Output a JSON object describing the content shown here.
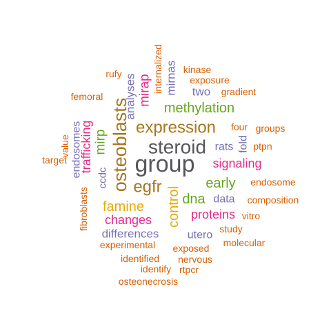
{
  "palette": {
    "orange": "#d95f02",
    "teal_gray": "#56565a",
    "purple": "#7570b3",
    "magenta": "#e7298a",
    "green": "#66a61e",
    "gold": "#e6ab02",
    "brown": "#a6761d",
    "gray": "#666666"
  },
  "words": [
    {
      "id": "group",
      "text": "group",
      "color": "#56565a"
    },
    {
      "id": "steroid",
      "text": "steroid",
      "color": "#56565a"
    },
    {
      "id": "expression",
      "text": "expression",
      "color": "#a6761d"
    },
    {
      "id": "osteoblasts",
      "text": "osteoblasts",
      "color": "#a6761d"
    },
    {
      "id": "egfr",
      "text": "egfr",
      "color": "#a6761d"
    },
    {
      "id": "methylation",
      "text": "methylation",
      "color": "#66a61e"
    },
    {
      "id": "famine",
      "text": "famine",
      "color": "#e6ab02"
    },
    {
      "id": "control",
      "text": "control",
      "color": "#e6ab02"
    },
    {
      "id": "signaling",
      "text": "signaling",
      "color": "#e7298a"
    },
    {
      "id": "early",
      "text": "early",
      "color": "#66a61e"
    },
    {
      "id": "dna",
      "text": "dna",
      "color": "#66a61e"
    },
    {
      "id": "changes",
      "text": "changes",
      "color": "#e7298a"
    },
    {
      "id": "proteins",
      "text": "proteins",
      "color": "#e7298a"
    },
    {
      "id": "mirp",
      "text": "mirp",
      "color": "#66a61e"
    },
    {
      "id": "trafficking",
      "text": "trafficking",
      "color": "#e7298a"
    },
    {
      "id": "differences",
      "text": "differences",
      "color": "#7570b3"
    },
    {
      "id": "mirap",
      "text": "mirap",
      "color": "#e7298a"
    },
    {
      "id": "analyses",
      "text": "analyses",
      "color": "#7570b3"
    },
    {
      "id": "mirnas",
      "text": "mirnas",
      "color": "#7570b3"
    },
    {
      "id": "internalized",
      "text": "internalized",
      "color": "#d95f02"
    },
    {
      "id": "rufy",
      "text": "rufy",
      "color": "#d95f02"
    },
    {
      "id": "kinase",
      "text": "kinase",
      "color": "#d95f02"
    },
    {
      "id": "exposure",
      "text": "exposure",
      "color": "#d95f02"
    },
    {
      "id": "two",
      "text": "two",
      "color": "#7570b3"
    },
    {
      "id": "gradient",
      "text": "gradient",
      "color": "#d95f02"
    },
    {
      "id": "femoral",
      "text": "femoral",
      "color": "#d95f02"
    },
    {
      "id": "four",
      "text": "four",
      "color": "#d95f02"
    },
    {
      "id": "groups",
      "text": "groups",
      "color": "#d95f02"
    },
    {
      "id": "rats",
      "text": "rats",
      "color": "#7570b3"
    },
    {
      "id": "fold",
      "text": "fold",
      "color": "#7570b3"
    },
    {
      "id": "ptpn",
      "text": "ptpn",
      "color": "#d95f02"
    },
    {
      "id": "endosomes",
      "text": "endosomes",
      "color": "#7570b3"
    },
    {
      "id": "value",
      "text": "value",
      "color": "#d95f02"
    },
    {
      "id": "target",
      "text": "target",
      "color": "#d95f02"
    },
    {
      "id": "ccdc",
      "text": "ccdc",
      "color": "#7570b3"
    },
    {
      "id": "endosome",
      "text": "endosome",
      "color": "#d95f02"
    },
    {
      "id": "fibroblasts",
      "text": "fibroblasts",
      "color": "#d95f02"
    },
    {
      "id": "data",
      "text": "data",
      "color": "#7570b3"
    },
    {
      "id": "composition",
      "text": "composition",
      "color": "#d95f02"
    },
    {
      "id": "vitro",
      "text": "vitro",
      "color": "#d95f02"
    },
    {
      "id": "utero",
      "text": "utero",
      "color": "#7570b3"
    },
    {
      "id": "study",
      "text": "study",
      "color": "#d95f02"
    },
    {
      "id": "experimental",
      "text": "experimental",
      "color": "#d95f02"
    },
    {
      "id": "exposed",
      "text": "exposed",
      "color": "#d95f02"
    },
    {
      "id": "molecular",
      "text": "molecular",
      "color": "#d95f02"
    },
    {
      "id": "identified",
      "text": "identified",
      "color": "#d95f02"
    },
    {
      "id": "nervous",
      "text": "nervous",
      "color": "#d95f02"
    },
    {
      "id": "identify",
      "text": "identify",
      "color": "#d95f02"
    },
    {
      "id": "rtpcr",
      "text": "rtpcr",
      "color": "#d95f02"
    },
    {
      "id": "osteonecrosis",
      "text": "osteonecrosis",
      "color": "#d95f02"
    }
  ]
}
